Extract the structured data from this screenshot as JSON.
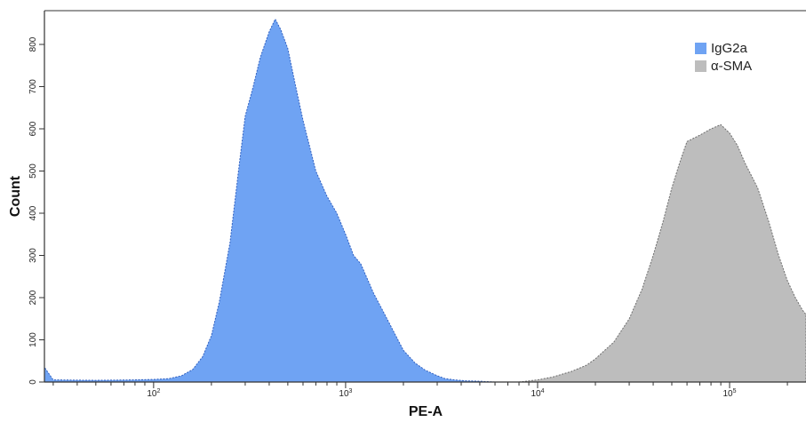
{
  "chart_data": {
    "type": "area",
    "title": "",
    "xlabel": "PE-A",
    "ylabel": "Count",
    "x_scale": "log",
    "xlim": [
      27,
      250000
    ],
    "ylim": [
      0,
      880
    ],
    "x_ticks": [
      {
        "value": 100,
        "label": "10",
        "exp": "2"
      },
      {
        "value": 1000,
        "label": "10",
        "exp": "3"
      },
      {
        "value": 10000,
        "label": "10",
        "exp": "4"
      },
      {
        "value": 100000,
        "label": "10",
        "exp": "5"
      }
    ],
    "y_ticks": [
      0,
      100,
      200,
      300,
      400,
      500,
      600,
      700,
      800
    ],
    "legend_position": "top-right",
    "series": [
      {
        "name": "IgG2a",
        "color": "#6fa3f3",
        "edge_color": "#2f5fc0",
        "x": [
          27,
          30,
          50,
          80,
          100,
          120,
          140,
          160,
          180,
          200,
          220,
          250,
          280,
          300,
          330,
          360,
          400,
          430,
          460,
          500,
          550,
          600,
          700,
          800,
          900,
          1000,
          1100,
          1200,
          1400,
          1600,
          1800,
          2000,
          2300,
          2600,
          3000,
          3300,
          3700,
          4200,
          5000,
          6000
        ],
        "values": [
          35,
          5,
          4,
          5,
          6,
          8,
          15,
          30,
          60,
          110,
          190,
          330,
          520,
          630,
          700,
          770,
          830,
          860,
          835,
          790,
          700,
          620,
          500,
          440,
          400,
          350,
          300,
          280,
          210,
          160,
          115,
          75,
          45,
          28,
          15,
          8,
          5,
          3,
          2,
          0
        ]
      },
      {
        "name": "α-SMA",
        "color": "#bdbdbd",
        "edge_color": "#6e6e6e",
        "x": [
          8000,
          10000,
          12000,
          15000,
          18000,
          20000,
          25000,
          30000,
          35000,
          40000,
          45000,
          50000,
          55000,
          60000,
          70000,
          80000,
          90000,
          100000,
          110000,
          120000,
          140000,
          160000,
          180000,
          200000,
          220000,
          240000,
          250000
        ],
        "values": [
          0,
          5,
          12,
          25,
          40,
          55,
          95,
          150,
          220,
          300,
          380,
          460,
          520,
          570,
          585,
          600,
          610,
          590,
          560,
          520,
          460,
          380,
          300,
          240,
          200,
          170,
          160
        ]
      }
    ]
  }
}
